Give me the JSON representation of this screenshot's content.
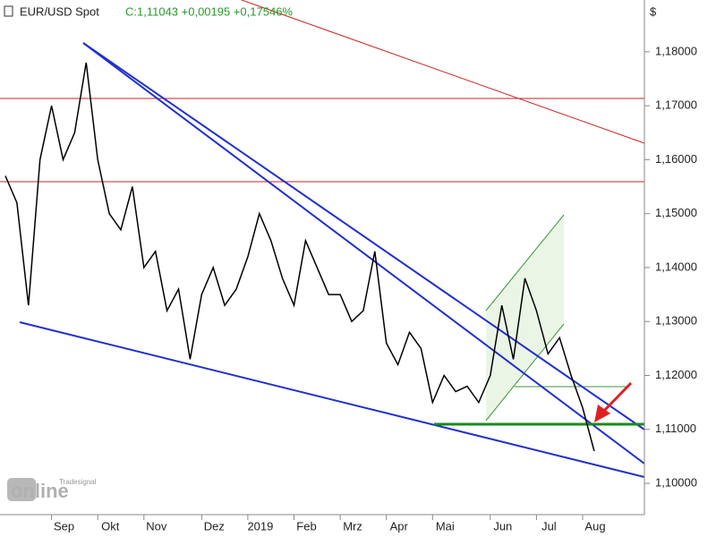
{
  "chart_data": {
    "type": "line",
    "title": "EUR/USD Spot",
    "subtitle": "C:1,11043 +0,00195 +0,17546%",
    "y_unit": "$",
    "logo": "online",
    "logo_small": "Tradesignal",
    "categories": [
      null,
      null,
      null,
      null,
      "Sep",
      null,
      null,
      null,
      "Okt",
      null,
      null,
      null,
      "Nov",
      null,
      null,
      null,
      null,
      "Dez",
      null,
      null,
      null,
      "2019",
      null,
      null,
      null,
      "Feb",
      null,
      null,
      null,
      "Mrz",
      null,
      null,
      null,
      "Apr",
      null,
      null,
      null,
      "Mai",
      null,
      null,
      null,
      null,
      "Jun",
      null,
      null,
      null,
      "Jul",
      null,
      null,
      null,
      "Aug",
      null
    ],
    "values": [
      1.157,
      1.152,
      1.133,
      1.16,
      1.17,
      1.16,
      1.165,
      1.178,
      1.16,
      1.15,
      1.147,
      1.155,
      1.14,
      1.143,
      1.132,
      1.136,
      1.123,
      1.135,
      1.14,
      1.133,
      1.136,
      1.142,
      1.15,
      1.145,
      1.138,
      1.133,
      1.145,
      1.14,
      1.135,
      1.135,
      1.13,
      1.132,
      1.143,
      1.126,
      1.122,
      1.128,
      1.125,
      1.115,
      1.12,
      1.117,
      1.118,
      1.115,
      1.12,
      1.133,
      1.123,
      1.138,
      1.132,
      1.124,
      1.127,
      1.12,
      1.114,
      1.106
    ],
    "color": "#000000",
    "ylim": [
      1.0942,
      1.1896
    ],
    "yticks": [
      {
        "value": 1.1,
        "label": "1,10000"
      },
      {
        "value": 1.11,
        "label": "1,11000"
      },
      {
        "value": 1.12,
        "label": "1,12000"
      },
      {
        "value": 1.13,
        "label": "1,13000"
      },
      {
        "value": 1.14,
        "label": "1,14000"
      },
      {
        "value": 1.15,
        "label": "1,15000"
      },
      {
        "value": 1.16,
        "label": "1,16000"
      },
      {
        "value": 1.17,
        "label": "1,17000"
      },
      {
        "value": 1.18,
        "label": "1,18000"
      }
    ],
    "grid": false
  }
}
